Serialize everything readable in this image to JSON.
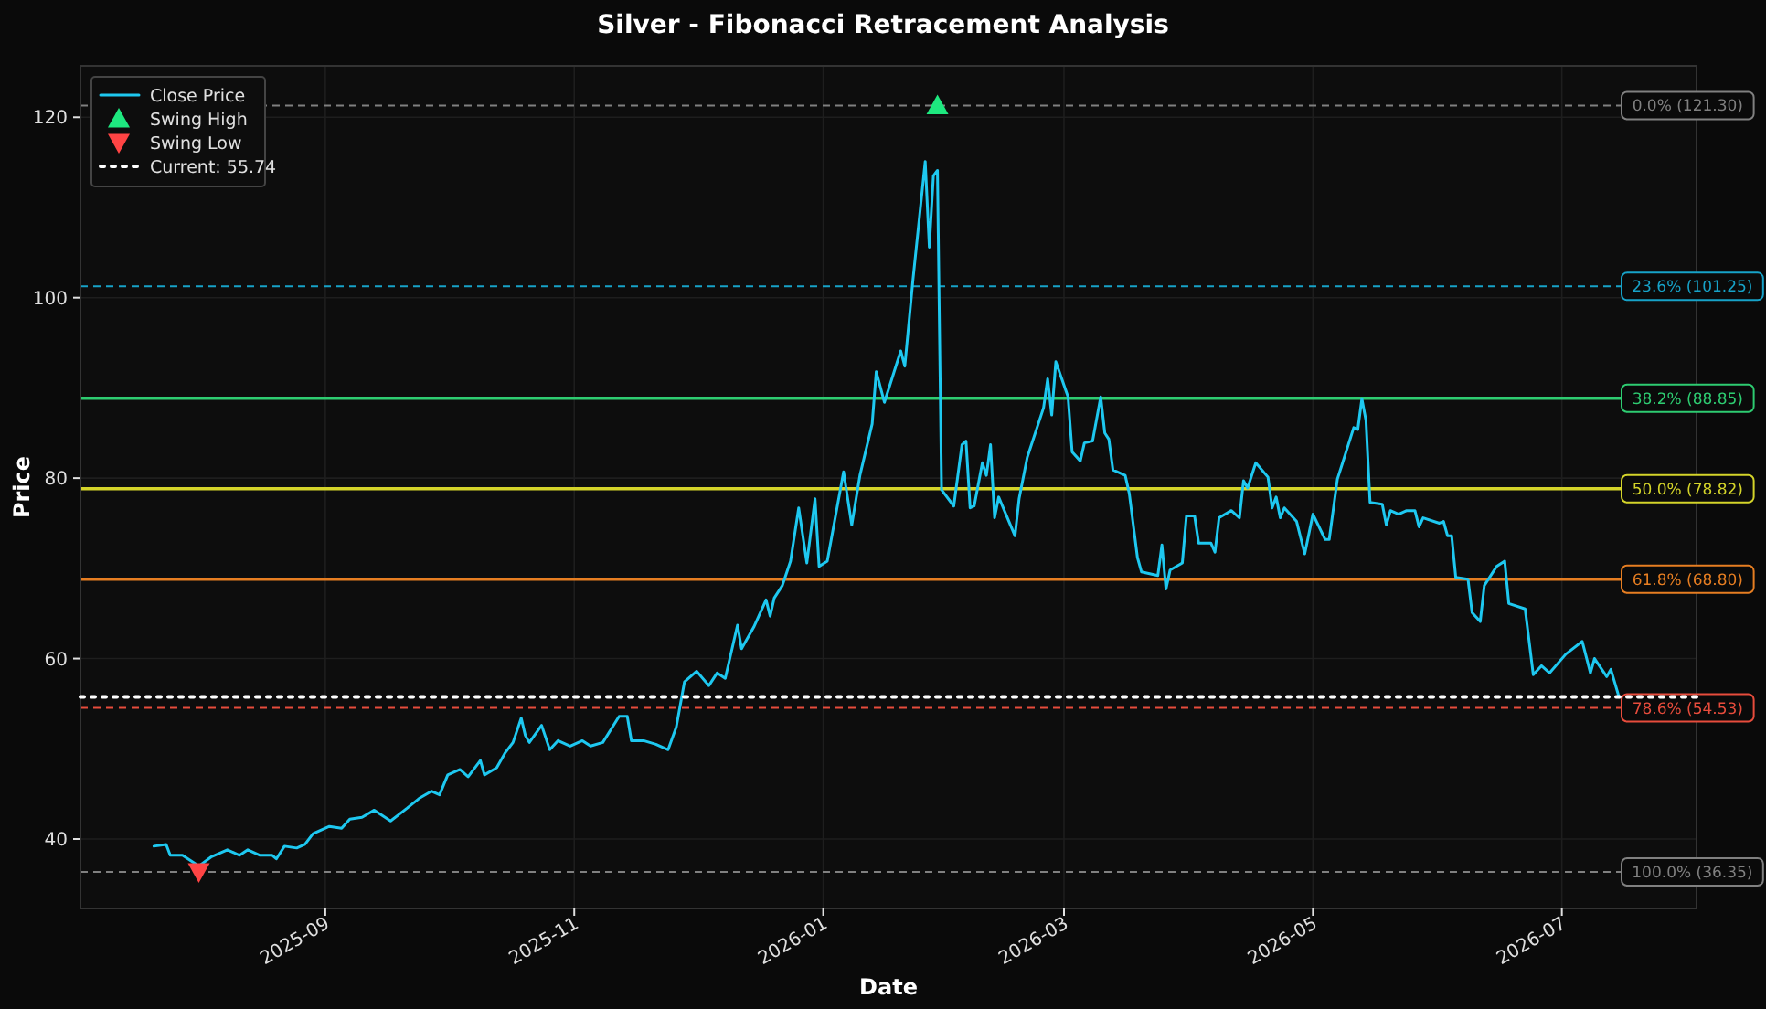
{
  "chart_data": {
    "type": "line",
    "title": "Silver - Fibonacci Retracement Analysis",
    "xlabel": "Date",
    "ylabel": "Price",
    "xlim": [
      "2025-07-03",
      "2026-08-03"
    ],
    "ylim": [
      32.3,
      125.7
    ],
    "xticks": [
      {
        "value": "2025-09-01",
        "label": "2025-09"
      },
      {
        "value": "2025-11-01",
        "label": "2025-11"
      },
      {
        "value": "2026-01-01",
        "label": "2026-01"
      },
      {
        "value": "2026-03-01",
        "label": "2026-03"
      },
      {
        "value": "2026-05-01",
        "label": "2026-05"
      },
      {
        "value": "2026-07-01",
        "label": "2026-07"
      }
    ],
    "yticks": [
      40,
      60,
      80,
      100,
      120
    ],
    "grid": true,
    "legend": "top left",
    "series": [
      {
        "name": "Close Price",
        "color": "#1ec8f0",
        "marker": "none",
        "line_style": "solid",
        "x": [
          "2025-07-21",
          "2025-07-24",
          "2025-07-25",
          "2025-07-28",
          "2025-08-01",
          "2025-08-04",
          "2025-08-08",
          "2025-08-11",
          "2025-08-13",
          "2025-08-16",
          "2025-08-19",
          "2025-08-20",
          "2025-08-22",
          "2025-08-25",
          "2025-08-27",
          "2025-08-29",
          "2025-09-02",
          "2025-09-05",
          "2025-09-07",
          "2025-09-10",
          "2025-09-13",
          "2025-09-17",
          "2025-09-21",
          "2025-09-24",
          "2025-09-27",
          "2025-09-29",
          "2025-10-01",
          "2025-10-04",
          "2025-10-06",
          "2025-10-09",
          "2025-10-10",
          "2025-10-13",
          "2025-10-15",
          "2025-10-17",
          "2025-10-19",
          "2025-10-20",
          "2025-10-21",
          "2025-10-24",
          "2025-10-26",
          "2025-10-28",
          "2025-10-31",
          "2025-11-03",
          "2025-11-05",
          "2025-11-08",
          "2025-11-12",
          "2025-11-14",
          "2025-11-15",
          "2025-11-18",
          "2025-11-21",
          "2025-11-24",
          "2025-11-26",
          "2025-11-28",
          "2025-12-01",
          "2025-12-04",
          "2025-12-06",
          "2025-12-08",
          "2025-12-11",
          "2025-12-12",
          "2025-12-15",
          "2025-12-18",
          "2025-12-19",
          "2025-12-20",
          "2025-12-22",
          "2025-12-24",
          "2025-12-26",
          "2025-12-28",
          "2025-12-30",
          "2025-12-31",
          "2026-01-02",
          "2026-01-06",
          "2026-01-08",
          "2026-01-10",
          "2026-01-13",
          "2026-01-14",
          "2026-01-16",
          "2026-01-20",
          "2026-01-21",
          "2026-01-23",
          "2026-01-26",
          "2026-01-27",
          "2026-01-28",
          "2026-01-29",
          "2026-01-30",
          "2026-02-02",
          "2026-02-04",
          "2026-02-05",
          "2026-02-06",
          "2026-02-07",
          "2026-02-09",
          "2026-02-10",
          "2026-02-11",
          "2026-02-12",
          "2026-02-13",
          "2026-02-17",
          "2026-02-18",
          "2026-02-20",
          "2026-02-24",
          "2026-02-25",
          "2026-02-26",
          "2026-02-27",
          "2026-03-02",
          "2026-03-03",
          "2026-03-05",
          "2026-03-06",
          "2026-03-08",
          "2026-03-10",
          "2026-03-11",
          "2026-03-12",
          "2026-03-13",
          "2026-03-16",
          "2026-03-17",
          "2026-03-19",
          "2026-03-20",
          "2026-03-24",
          "2026-03-25",
          "2026-03-26",
          "2026-03-27",
          "2026-03-30",
          "2026-03-31",
          "2026-04-02",
          "2026-04-03",
          "2026-04-06",
          "2026-04-07",
          "2026-04-08",
          "2026-04-11",
          "2026-04-13",
          "2026-04-14",
          "2026-04-15",
          "2026-04-17",
          "2026-04-20",
          "2026-04-21",
          "2026-04-22",
          "2026-04-23",
          "2026-04-24",
          "2026-04-27",
          "2026-04-29",
          "2026-05-01",
          "2026-05-04",
          "2026-05-05",
          "2026-05-07",
          "2026-05-08",
          "2026-05-11",
          "2026-05-12",
          "2026-05-13",
          "2026-05-14",
          "2026-05-15",
          "2026-05-18",
          "2026-05-19",
          "2026-05-20",
          "2026-05-22",
          "2026-05-24",
          "2026-05-26",
          "2026-05-27",
          "2026-05-28",
          "2026-06-01",
          "2026-06-02",
          "2026-06-03",
          "2026-06-04",
          "2026-06-05",
          "2026-06-08",
          "2026-06-09",
          "2026-06-11",
          "2026-06-12",
          "2026-06-15",
          "2026-06-17",
          "2026-06-18",
          "2026-06-22",
          "2026-06-24",
          "2026-06-26",
          "2026-06-28",
          "2026-07-02",
          "2026-07-06",
          "2026-07-08",
          "2026-07-09",
          "2026-07-12",
          "2026-07-13",
          "2026-07-15"
        ],
        "values": [
          39.2,
          39.4,
          38.2,
          38.2,
          37.0,
          38.0,
          38.8,
          38.2,
          38.8,
          38.2,
          38.2,
          37.8,
          39.2,
          39.0,
          39.4,
          40.6,
          41.4,
          41.2,
          42.2,
          42.4,
          43.2,
          42.0,
          43.4,
          44.5,
          45.3,
          44.9,
          47.1,
          47.7,
          46.9,
          48.7,
          47.1,
          47.9,
          49.5,
          50.7,
          53.4,
          51.5,
          50.7,
          52.6,
          49.9,
          50.9,
          50.3,
          50.9,
          50.3,
          50.7,
          53.6,
          53.6,
          50.9,
          50.9,
          50.5,
          49.9,
          52.4,
          57.4,
          58.6,
          57.0,
          58.4,
          57.8,
          63.7,
          61.1,
          63.5,
          66.5,
          64.7,
          66.7,
          68.1,
          70.8,
          76.7,
          70.6,
          77.7,
          70.2,
          70.8,
          80.7,
          74.8,
          80.3,
          86.0,
          91.8,
          88.4,
          94.1,
          92.4,
          102.0,
          115.1,
          105.6,
          113.5,
          114.1,
          78.7,
          76.9,
          83.7,
          84.1,
          76.7,
          76.9,
          81.7,
          80.3,
          83.7,
          75.6,
          77.9,
          73.6,
          77.7,
          82.3,
          87.8,
          91.0,
          87.0,
          92.9,
          89.0,
          82.9,
          81.9,
          83.9,
          84.1,
          89.0,
          85.0,
          84.3,
          80.9,
          80.3,
          78.3,
          71.2,
          69.6,
          69.2,
          72.6,
          67.7,
          69.8,
          70.6,
          75.8,
          75.8,
          72.8,
          72.8,
          71.8,
          75.6,
          76.4,
          75.6,
          79.7,
          78.9,
          81.7,
          80.1,
          76.7,
          77.9,
          75.6,
          76.7,
          75.2,
          71.6,
          76.0,
          73.2,
          73.2,
          79.9,
          81.3,
          85.6,
          85.4,
          88.8,
          86.4,
          77.3,
          77.1,
          74.8,
          76.4,
          76.0,
          76.4,
          76.4,
          74.6,
          75.6,
          75.0,
          75.2,
          73.6,
          73.6,
          69.0,
          68.8,
          65.1,
          64.1,
          68.1,
          70.2,
          70.8,
          66.1,
          65.5,
          58.2,
          59.2,
          58.4,
          60.5,
          61.9,
          58.4,
          60.0,
          58.0,
          58.8,
          55.74
        ]
      },
      {
        "name": "Swing High",
        "type": "scatter",
        "color": "#1ee87f",
        "marker": "triangle",
        "x": [
          "2026-01-29"
        ],
        "values": [
          121.3
        ]
      },
      {
        "name": "Swing Low",
        "type": "scatter",
        "color": "#ff4444",
        "marker": "triangle-down",
        "x": [
          "2025-08-01"
        ],
        "values": [
          36.35
        ]
      },
      {
        "name": "Current: 55.74",
        "color": "#ffffff",
        "marker": "none",
        "line_style": "dotted",
        "x": [
          "2025-07-03",
          "2026-08-03"
        ],
        "values": [
          55.74,
          55.74
        ]
      }
    ],
    "ref_lines": [
      {
        "axis": "y",
        "value": 121.3,
        "label": "0.0% (121.30)",
        "color": "#808080",
        "line_style": "dashed"
      },
      {
        "axis": "y",
        "value": 101.25,
        "label": "23.6% (101.25)",
        "color": "#17a2c8",
        "line_style": "dashed"
      },
      {
        "axis": "y",
        "value": 88.85,
        "label": "38.2% (88.85)",
        "color": "#2ecc71",
        "line_style": "solid"
      },
      {
        "axis": "y",
        "value": 78.82,
        "label": "50.0% (78.82)",
        "color": "#d4d42a",
        "line_style": "solid"
      },
      {
        "axis": "y",
        "value": 68.8,
        "label": "61.8% (68.80)",
        "color": "#e67e22",
        "line_style": "solid"
      },
      {
        "axis": "y",
        "value": 54.53,
        "label": "78.6% (54.53)",
        "color": "#e74c3c",
        "line_style": "dashed"
      },
      {
        "axis": "y",
        "value": 36.35,
        "label": "100.0% (36.35)",
        "color": "#808080",
        "line_style": "dashed"
      }
    ]
  }
}
